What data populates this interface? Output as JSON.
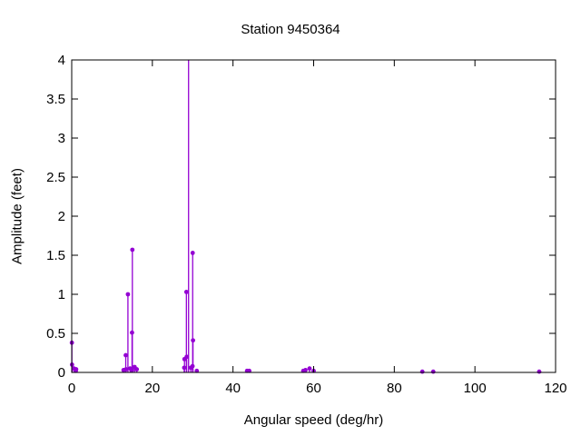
{
  "title": "Station 9450364",
  "colors": {
    "series": "#9400D3",
    "axis": "#000000",
    "text": "#000000",
    "background": "#ffffff"
  },
  "chart_data": {
    "type": "scatter",
    "style": "impulses+points",
    "title": "Station 9450364",
    "xlabel": "Angular speed (deg/hr)",
    "ylabel": "Amplitude (feet)",
    "xlim": [
      0,
      120
    ],
    "ylim": [
      0,
      4
    ],
    "xticks": [
      0,
      20,
      40,
      60,
      80,
      100,
      120
    ],
    "yticks": [
      0,
      0.5,
      1,
      1.5,
      2,
      2.5,
      3,
      3.5,
      4
    ],
    "grid": false,
    "legend": "none",
    "series_color": "#9400D3",
    "points": [
      {
        "x": 0.04,
        "y": 0.38
      },
      {
        "x": 0.08,
        "y": 0.1
      },
      {
        "x": 0.54,
        "y": 0.05
      },
      {
        "x": 1.02,
        "y": 0.02
      },
      {
        "x": 1.1,
        "y": 0.04
      },
      {
        "x": 12.85,
        "y": 0.03
      },
      {
        "x": 13.4,
        "y": 0.22
      },
      {
        "x": 13.47,
        "y": 0.04
      },
      {
        "x": 13.94,
        "y": 1.0
      },
      {
        "x": 14.49,
        "y": 0.05
      },
      {
        "x": 14.92,
        "y": 0.03
      },
      {
        "x": 14.96,
        "y": 0.51
      },
      {
        "x": 15.04,
        "y": 1.57
      },
      {
        "x": 15.59,
        "y": 0.07
      },
      {
        "x": 16.14,
        "y": 0.04
      },
      {
        "x": 27.9,
        "y": 0.06
      },
      {
        "x": 27.97,
        "y": 0.17
      },
      {
        "x": 28.44,
        "y": 1.03
      },
      {
        "x": 28.51,
        "y": 0.2
      },
      {
        "x": 28.98,
        "y": 4.0,
        "clipped": true
      },
      {
        "x": 29.53,
        "y": 0.06
      },
      {
        "x": 29.96,
        "y": 0.08
      },
      {
        "x": 30.0,
        "y": 1.53
      },
      {
        "x": 30.08,
        "y": 0.41
      },
      {
        "x": 31.02,
        "y": 0.02
      },
      {
        "x": 43.48,
        "y": 0.02
      },
      {
        "x": 44.03,
        "y": 0.02
      },
      {
        "x": 57.42,
        "y": 0.02
      },
      {
        "x": 57.97,
        "y": 0.03
      },
      {
        "x": 58.98,
        "y": 0.05
      },
      {
        "x": 60.0,
        "y": 0.02
      },
      {
        "x": 86.95,
        "y": 0.01
      },
      {
        "x": 89.66,
        "y": 0.01
      },
      {
        "x": 115.94,
        "y": 0.01
      }
    ]
  }
}
